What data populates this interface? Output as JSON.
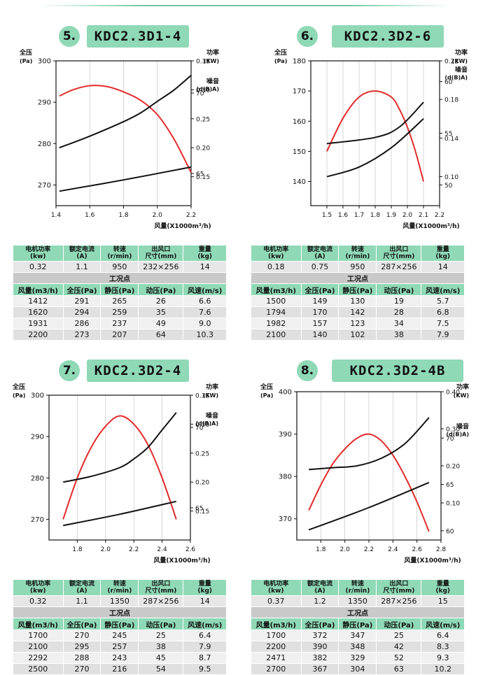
{
  "panels": [
    {
      "num": "5.",
      "title": "KDC2.3D1-4",
      "labels": {
        "left1": "全压",
        "left2": "(Pa)",
        "right1": "功率",
        "right2": "(KW)",
        "noise1": "噪音",
        "noise2": "(d(B)A)",
        "x": "风量(X1000m³/h)"
      },
      "chart_data": {
        "type": "line",
        "x_ticks": [
          "1.4",
          "1.6",
          "1.8",
          "2.0",
          "2.2"
        ],
        "xlim": [
          1.4,
          2.2
        ],
        "pressure_ticks": [
          "270",
          "280",
          "290",
          "300"
        ],
        "pressure_lim": [
          265,
          300
        ],
        "power_ticks": [
          "0.15",
          "0.20",
          "0.25",
          "0.30",
          "0.35"
        ],
        "power_lim": [
          0.1,
          0.35
        ],
        "noise_ticks": [
          "65",
          "70"
        ],
        "noise_lim": [
          63,
          72
        ],
        "series": [
          {
            "axis": "pressure",
            "color": "#e32b2b",
            "points": [
              [
                1.42,
                291.5
              ],
              [
                1.5,
                293
              ],
              [
                1.6,
                294
              ],
              [
                1.7,
                293.8
              ],
              [
                1.8,
                292.5
              ],
              [
                1.9,
                290.5
              ],
              [
                2.0,
                287
              ],
              [
                2.1,
                281
              ],
              [
                2.2,
                273
              ]
            ]
          },
          {
            "axis": "power",
            "color": "#111111",
            "points": [
              [
                1.42,
                0.2
              ],
              [
                1.6,
                0.22
              ],
              [
                1.8,
                0.245
              ],
              [
                1.9,
                0.26
              ],
              [
                2.0,
                0.28
              ],
              [
                2.1,
                0.3
              ],
              [
                2.2,
                0.325
              ]
            ]
          },
          {
            "axis": "noise",
            "color": "#111111",
            "points": [
              [
                1.42,
                63.9
              ],
              [
                1.8,
                64.6
              ],
              [
                2.2,
                65.4
              ]
            ]
          }
        ]
      },
      "specs": {
        "headers": [
          "电机功率\n(kw)",
          "额定电流\n(A)",
          "转速\n(r/min)",
          "出风口\n尺寸(mm)",
          "重量\n(kg)"
        ],
        "values": [
          "0.32",
          "1.1",
          "950",
          "232×256",
          "14"
        ]
      },
      "work_title": "工况点",
      "work_headers": [
        "风量(m3/h)",
        "全压(Pa)",
        "静压(Pa)",
        "动压(Pa)",
        "风速(m/s)"
      ],
      "rows": [
        [
          "1412",
          "291",
          "265",
          "26",
          "6.6"
        ],
        [
          "1620",
          "294",
          "259",
          "35",
          "7.6"
        ],
        [
          "1931",
          "286",
          "237",
          "49",
          "9.0"
        ],
        [
          "2200",
          "273",
          "207",
          "64",
          "10.3"
        ]
      ]
    },
    {
      "num": "6.",
      "title": "KDC2.3D2-6",
      "labels": {
        "left1": "全压",
        "left2": "(Pa)",
        "right1": "功率",
        "right2": "(KW)",
        "noise1": "噪音",
        "noise2": "(d(B)A)",
        "x": "风量(X1000m³/h)"
      },
      "chart_data": {
        "type": "line",
        "x_ticks": [
          "1.5",
          "1.6",
          "1.7",
          "1.8",
          "1.9",
          "2.0",
          "2.1",
          "2.2"
        ],
        "xlim": [
          1.4,
          2.2
        ],
        "pressure_ticks": [
          "140",
          "150",
          "160",
          "170",
          "180"
        ],
        "pressure_lim": [
          132,
          180
        ],
        "power_ticks": [
          "0.10",
          "0.14",
          "0.18",
          "0.22"
        ],
        "power_lim": [
          0.07,
          0.22
        ],
        "noise_ticks": [
          "50",
          "55",
          "60"
        ],
        "noise_lim": [
          48,
          62
        ],
        "series": [
          {
            "axis": "pressure",
            "color": "#e32b2b",
            "points": [
              [
                1.5,
                150
              ],
              [
                1.6,
                161
              ],
              [
                1.7,
                168
              ],
              [
                1.8,
                170
              ],
              [
                1.9,
                168
              ],
              [
                1.95,
                164
              ],
              [
                2.0,
                158
              ],
              [
                2.05,
                150
              ],
              [
                2.1,
                140
              ]
            ]
          },
          {
            "axis": "power",
            "color": "#111111",
            "points": [
              [
                1.5,
                0.1
              ],
              [
                1.7,
                0.11
              ],
              [
                1.9,
                0.13
              ],
              [
                2.1,
                0.16
              ]
            ]
          },
          {
            "axis": "noise",
            "color": "#111111",
            "points": [
              [
                1.5,
                54
              ],
              [
                1.8,
                54.6
              ],
              [
                1.95,
                55.6
              ],
              [
                2.1,
                58
              ]
            ]
          }
        ]
      },
      "specs": {
        "headers": [
          "电机功率\n(kw)",
          "额定电流\n(A)",
          "转速\n(r/min)",
          "出风口\n尺寸(mm)",
          "重量\n(kg)"
        ],
        "values": [
          "0.18",
          "0.75",
          "950",
          "287×256",
          "14"
        ]
      },
      "work_title": "工况点",
      "work_headers": [
        "风量(m3/h)",
        "全压(Pa)",
        "静压(Pa)",
        "动压(Pa)",
        "风速(m/s)"
      ],
      "rows": [
        [
          "1500",
          "149",
          "130",
          "19",
          "5.7"
        ],
        [
          "1794",
          "170",
          "142",
          "28",
          "6.8"
        ],
        [
          "1982",
          "157",
          "123",
          "34",
          "7.5"
        ],
        [
          "2100",
          "140",
          "102",
          "38",
          "7.9"
        ]
      ]
    },
    {
      "num": "7.",
      "title": "KDC2.3D2-4",
      "labels": {
        "left1": "全压",
        "left2": "(Pa)",
        "right1": "功率",
        "right2": "(KW)",
        "noise1": "噪音",
        "noise2": "(d(B)A)",
        "x": "风量(X1000m³/h)"
      },
      "chart_data": {
        "type": "line",
        "x_ticks": [
          "1.8",
          "2.0",
          "2.2",
          "2.4",
          "2.6"
        ],
        "xlim": [
          1.6,
          2.6
        ],
        "pressure_ticks": [
          "270",
          "280",
          "290",
          "300"
        ],
        "pressure_lim": [
          265,
          300
        ],
        "power_ticks": [
          "0.15",
          "0.20",
          "0.25",
          "0.30",
          "0.35"
        ],
        "power_lim": [
          0.1,
          0.35
        ],
        "noise_ticks": [
          "65",
          "70"
        ],
        "noise_lim": [
          63,
          72
        ],
        "series": [
          {
            "axis": "pressure",
            "color": "#e32b2b",
            "points": [
              [
                1.7,
                270
              ],
              [
                1.8,
                280
              ],
              [
                1.9,
                287.5
              ],
              [
                2.0,
                292.5
              ],
              [
                2.1,
                295
              ],
              [
                2.2,
                293
              ],
              [
                2.3,
                288
              ],
              [
                2.4,
                280
              ],
              [
                2.5,
                270
              ]
            ]
          },
          {
            "axis": "power",
            "color": "#111111",
            "points": [
              [
                1.7,
                0.2
              ],
              [
                1.9,
                0.21
              ],
              [
                2.1,
                0.225
              ],
              [
                2.2,
                0.24
              ],
              [
                2.3,
                0.26
              ],
              [
                2.4,
                0.29
              ],
              [
                2.5,
                0.32
              ]
            ]
          },
          {
            "axis": "noise",
            "color": "#111111",
            "points": [
              [
                1.7,
                63.9
              ],
              [
                2.1,
                64.6
              ],
              [
                2.5,
                65.4
              ]
            ]
          }
        ]
      },
      "specs": {
        "headers": [
          "电机功率\n(kw)",
          "额定电流\n(A)",
          "转速\n(r/min)",
          "出风口\n尺寸(mm)",
          "重量\n(kg)"
        ],
        "values": [
          "0.32",
          "1.1",
          "1350",
          "287×256",
          "14"
        ]
      },
      "work_title": "工况点",
      "work_headers": [
        "风量(m3/h)",
        "全压(Pa)",
        "静压(Pa)",
        "动压(Pa)",
        "风速(m/s)"
      ],
      "rows": [
        [
          "1700",
          "270",
          "245",
          "25",
          "6.4"
        ],
        [
          "2100",
          "295",
          "257",
          "38",
          "7.9"
        ],
        [
          "2292",
          "288",
          "243",
          "45",
          "8.7"
        ],
        [
          "2500",
          "270",
          "216",
          "54",
          "9.5"
        ]
      ]
    },
    {
      "num": "8.",
      "title": "KDC2.3D2-4B",
      "labels": {
        "left1": "全压",
        "left2": "(Pa)",
        "right1": "功率",
        "right2": "(KW)",
        "noise1": "噪音",
        "noise2": "(d(B)A)",
        "x": "风量(X1000m³/h)"
      },
      "chart_data": {
        "type": "line",
        "x_ticks": [
          "1.8",
          "2.0",
          "2.2",
          "2.4",
          "2.6",
          "2.8"
        ],
        "xlim": [
          1.6,
          2.8
        ],
        "pressure_ticks": [
          "370",
          "380",
          "390",
          "400"
        ],
        "pressure_lim": [
          365,
          400
        ],
        "power_ticks": [
          "0.10",
          "0.20",
          "0.30",
          "0.40"
        ],
        "power_lim": [
          0.0,
          0.4
        ],
        "noise_ticks": [
          "60",
          "65",
          "70"
        ],
        "noise_lim": [
          59,
          75
        ],
        "series": [
          {
            "axis": "pressure",
            "color": "#e32b2b",
            "points": [
              [
                1.7,
                372
              ],
              [
                1.8,
                378
              ],
              [
                1.9,
                383
              ],
              [
                2.0,
                386.5
              ],
              [
                2.1,
                389
              ],
              [
                2.2,
                390
              ],
              [
                2.3,
                388.5
              ],
              [
                2.4,
                385
              ],
              [
                2.5,
                380
              ],
              [
                2.6,
                374
              ],
              [
                2.7,
                367
              ]
            ]
          },
          {
            "axis": "power",
            "color": "#111111",
            "points": [
              [
                1.7,
                0.19
              ],
              [
                1.9,
                0.195
              ],
              [
                2.1,
                0.2
              ],
              [
                2.3,
                0.22
              ],
              [
                2.5,
                0.26
              ],
              [
                2.7,
                0.33
              ]
            ]
          },
          {
            "axis": "noise",
            "color": "#111111",
            "points": [
              [
                1.7,
                60.1
              ],
              [
                2.2,
                62.5
              ],
              [
                2.7,
                65.2
              ]
            ]
          }
        ]
      },
      "specs": {
        "headers": [
          "电机功率\n(kw)",
          "额定电流\n(A)",
          "转速\n(r/min)",
          "出风口\n尺寸(mm)",
          "重量\n(kg)"
        ],
        "values": [
          "0.37",
          "1.2",
          "1350",
          "287×256",
          "15"
        ]
      },
      "work_title": "工况点",
      "work_headers": [
        "风量(m3/h)",
        "全压(Pa)",
        "静压(Pa)",
        "动压(Pa)",
        "风速(m/s)"
      ],
      "rows": [
        [
          "1700",
          "372",
          "347",
          "25",
          "6.4"
        ],
        [
          "2200",
          "390",
          "348",
          "42",
          "8.3"
        ],
        [
          "2471",
          "382",
          "329",
          "52",
          "9.3"
        ],
        [
          "2700",
          "367",
          "304",
          "63",
          "10.2"
        ]
      ]
    }
  ]
}
